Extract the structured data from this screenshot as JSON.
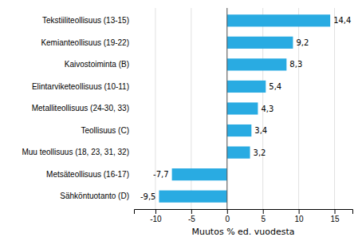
{
  "chart_data": {
    "type": "bar",
    "orientation": "horizontal",
    "categories": [
      "Sähköntuotanto (D)",
      "Metsäteollisuus (16-17)",
      "Muu teollisuus (18, 23, 31, 32)",
      "Teollisuus (C)",
      "Metalliteollisuus (24-30, 33)",
      "Elintarviketeollisuus (10-11)",
      "Kaivostoiminta (B)",
      "Kemianteollisuus (19-22)",
      "Tekstiiliteollisuus (13-15)"
    ],
    "values": [
      -9.5,
      -7.7,
      3.2,
      3.4,
      4.3,
      5.4,
      8.3,
      9.2,
      14.4
    ],
    "value_labels": [
      "-9,5",
      "-7,7",
      "3,2",
      "3,4",
      "4,3",
      "5,4",
      "8,3",
      "9,2",
      "14,4"
    ],
    "data_labels": true,
    "color": "#29ABE2",
    "xlabel": "Muutos % ed. vuodesta",
    "xlim": [
      -13,
      17.5
    ],
    "xticks": [
      -10,
      -5,
      0,
      5,
      10,
      15
    ],
    "grid": true
  }
}
